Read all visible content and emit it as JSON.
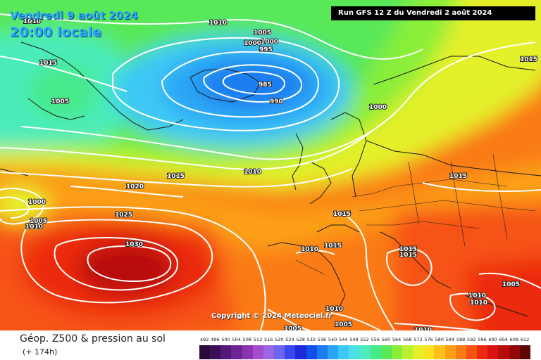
{
  "header": {
    "date": "Vendredi 9 août 2024",
    "time": "20:00 locale",
    "run": "Run GFS 12 Z du Vendredi 2 août 2024"
  },
  "copyright": "Copyright © 2024 Meteociel.fr",
  "legend": {
    "title": "Géop. Z500 & pression au sol",
    "subtitle": "(+ 174h)",
    "scale": [
      {
        "value": "492",
        "color": "#2a0a3a"
      },
      {
        "value": "496",
        "color": "#3c1056"
      },
      {
        "value": "500",
        "color": "#561878"
      },
      {
        "value": "504",
        "color": "#6e2494"
      },
      {
        "value": "508",
        "color": "#8a34b0"
      },
      {
        "value": "512",
        "color": "#a64ad0"
      },
      {
        "value": "516",
        "color": "#9a66e6"
      },
      {
        "value": "520",
        "color": "#6a66f0"
      },
      {
        "value": "524",
        "color": "#3a46ee"
      },
      {
        "value": "528",
        "color": "#1a2ad8"
      },
      {
        "value": "532",
        "color": "#1050e8"
      },
      {
        "value": "536",
        "color": "#1a7cf0"
      },
      {
        "value": "540",
        "color": "#2aa4f4"
      },
      {
        "value": "544",
        "color": "#3cc8f6"
      },
      {
        "value": "548",
        "color": "#4ce0e6"
      },
      {
        "value": "552",
        "color": "#4cecbc"
      },
      {
        "value": "556",
        "color": "#46ea8a"
      },
      {
        "value": "560",
        "color": "#58e858"
      },
      {
        "value": "564",
        "color": "#8aee38"
      },
      {
        "value": "568",
        "color": "#bcf030"
      },
      {
        "value": "572",
        "color": "#e4f02a"
      },
      {
        "value": "576",
        "color": "#fae020"
      },
      {
        "value": "580",
        "color": "#fcc21a"
      },
      {
        "value": "584",
        "color": "#fca016"
      },
      {
        "value": "588",
        "color": "#fa7a14"
      },
      {
        "value": "592",
        "color": "#f65212"
      },
      {
        "value": "596",
        "color": "#ec2a10"
      },
      {
        "value": "600",
        "color": "#d81410"
      },
      {
        "value": "604",
        "color": "#b80c0c"
      },
      {
        "value": "608",
        "color": "#900808"
      },
      {
        "value": "612",
        "color": "#5e0404"
      }
    ]
  },
  "isobars": [
    {
      "label": "1010"
    },
    {
      "label": "1010"
    },
    {
      "label": "1005"
    },
    {
      "label": "1005"
    },
    {
      "label": "1000"
    },
    {
      "label": "1000"
    },
    {
      "label": "995"
    },
    {
      "label": "985"
    },
    {
      "label": "990"
    },
    {
      "label": "1000"
    },
    {
      "label": "1015"
    },
    {
      "label": "1015"
    },
    {
      "label": "1010"
    },
    {
      "label": "1020"
    },
    {
      "label": "1000"
    },
    {
      "label": "1005"
    },
    {
      "label": "1010"
    },
    {
      "label": "1025"
    },
    {
      "label": "1030"
    },
    {
      "label": "1015"
    },
    {
      "label": "1015"
    },
    {
      "label": "1010"
    },
    {
      "label": "1015"
    },
    {
      "label": "1015"
    },
    {
      "label": "1015"
    },
    {
      "label": "1005"
    },
    {
      "label": "1010"
    },
    {
      "label": "1010"
    },
    {
      "label": "1010"
    },
    {
      "label": "1005"
    },
    {
      "label": "1005"
    },
    {
      "label": "1010"
    },
    {
      "label": "1015"
    }
  ]
}
